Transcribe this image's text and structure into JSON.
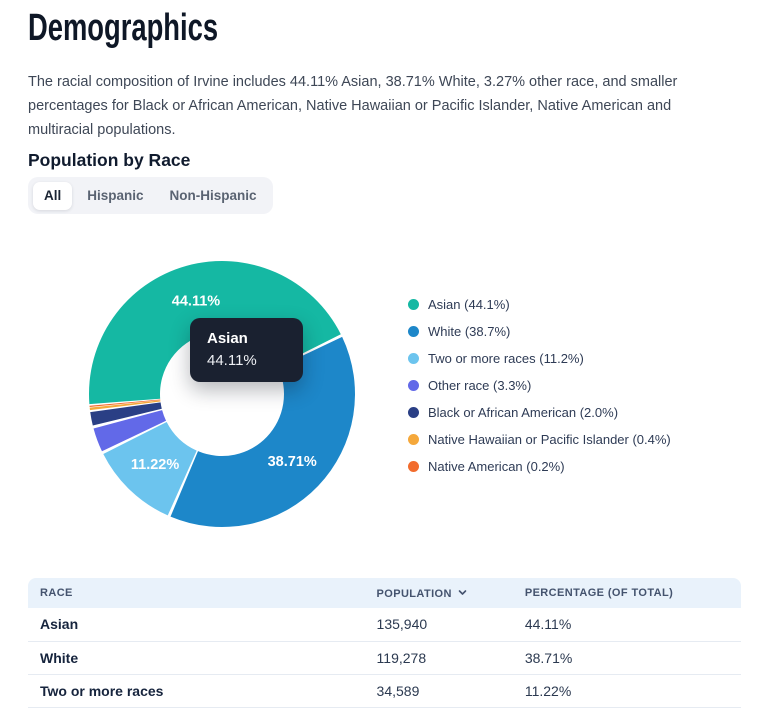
{
  "page": {
    "title": "Demographics",
    "description": "The racial composition of Irvine includes 44.11% Asian, 38.71% White, 3.27% other race, and smaller percentages for Black or African American, Native Hawaiian or Pacific Islander, Native American and multiracial populations.",
    "section_title": "Population by Race"
  },
  "tabs": [
    {
      "label": "All",
      "active": true
    },
    {
      "label": "Hispanic",
      "active": false
    },
    {
      "label": "Non-Hispanic",
      "active": false
    }
  ],
  "chart_data": {
    "type": "pie",
    "subtype": "donut",
    "title": "Population by Race",
    "legend_position": "right",
    "start_angle_deg": 265,
    "series": [
      {
        "name": "Asian",
        "value": 44.11,
        "slice_label": "44.11%",
        "legend_label": "Asian (44.1%)",
        "color": "#15b8a3"
      },
      {
        "name": "White",
        "value": 38.71,
        "slice_label": "38.71%",
        "legend_label": "White (38.7%)",
        "color": "#1d87c9"
      },
      {
        "name": "Two or more races",
        "value": 11.22,
        "slice_label": "11.22%",
        "legend_label": "Two or more races (11.2%)",
        "color": "#6cc4ee"
      },
      {
        "name": "Other race",
        "value": 3.27,
        "slice_label": "",
        "legend_label": "Other race (3.3%)",
        "color": "#6269e8"
      },
      {
        "name": "Black or African American",
        "value": 2.0,
        "slice_label": "",
        "legend_label": "Black or African American (2.0%)",
        "color": "#2a3f85"
      },
      {
        "name": "Native Hawaiian or Pacific Islander",
        "value": 0.4,
        "slice_label": "",
        "legend_label": "Native Hawaiian or Pacific Islander (0.4%)",
        "color": "#f5a83b"
      },
      {
        "name": "Native American",
        "value": 0.2,
        "slice_label": "",
        "legend_label": "Native American (0.2%)",
        "color": "#f26c2d"
      }
    ]
  },
  "tooltip": {
    "title": "Asian",
    "value": "44.11%"
  },
  "table": {
    "headers": [
      {
        "label": "RACE",
        "sortable": false
      },
      {
        "label": "POPULATION",
        "sortable": true,
        "sort": "desc"
      },
      {
        "label": "PERCENTAGE (OF TOTAL)",
        "sortable": false
      }
    ],
    "rows": [
      {
        "race": "Asian",
        "population": "135,940",
        "percentage": "44.11%"
      },
      {
        "race": "White",
        "population": "119,278",
        "percentage": "38.71%"
      },
      {
        "race": "Two or more races",
        "population": "34,589",
        "percentage": "11.22%"
      }
    ]
  }
}
